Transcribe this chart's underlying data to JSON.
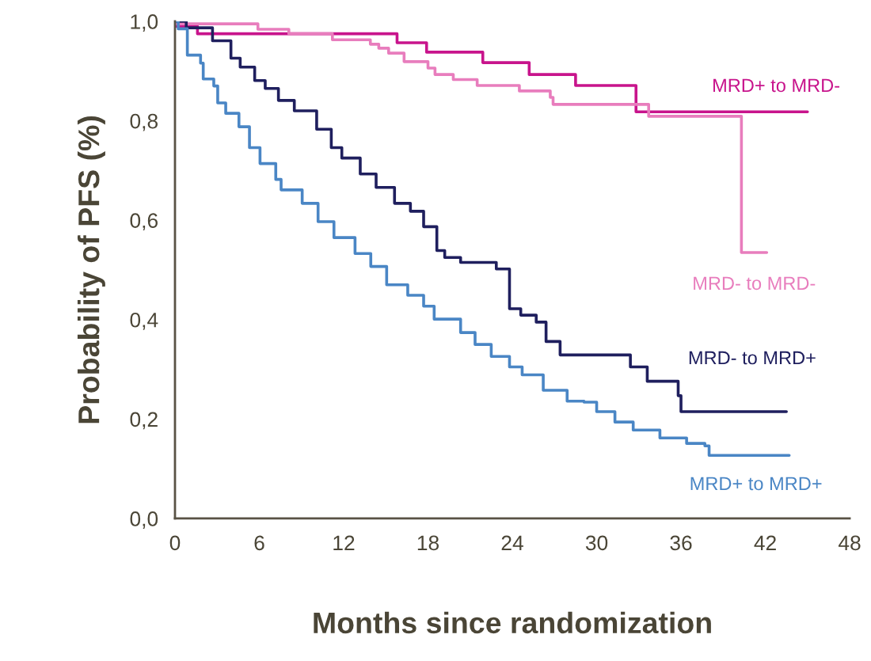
{
  "chart_data": {
    "type": "step",
    "xlabel": "Months since randomization",
    "ylabel": "Probability of PFS (%)",
    "xlim": [
      0,
      48
    ],
    "xticks": [
      0,
      6,
      12,
      18,
      24,
      30,
      36,
      42,
      48
    ],
    "ylim": [
      0,
      1
    ],
    "yticks": [
      {
        "value": 0,
        "label": "0,0"
      },
      {
        "value": 0.2,
        "label": "0,2"
      },
      {
        "value": 0.4,
        "label": "0,4"
      },
      {
        "value": 0.6,
        "label": "0,6"
      },
      {
        "value": 0.8,
        "label": "0,8"
      },
      {
        "value": 1,
        "label": "1,0"
      }
    ],
    "grid": false,
    "legend": false,
    "series": [
      {
        "name": "MRD+ to MRD-",
        "color": "#c8148c",
        "x": [
          0,
          1.6,
          15.8,
          17.9,
          21.9,
          25.2,
          28.5,
          32.8,
          45.0
        ],
        "values": [
          0.99,
          0.975,
          0.957,
          0.938,
          0.917,
          0.893,
          0.871,
          0.818,
          0.818
        ]
      },
      {
        "name": "MRD- to MRD-",
        "color": "#e87dbd",
        "x": [
          0,
          5.9,
          8.1,
          11.2,
          13.9,
          14.5,
          15.2,
          16.3,
          18.0,
          18.5,
          19.8,
          21.5,
          24.5,
          26.7,
          26.9,
          33.7,
          40.3,
          42.1
        ],
        "values": [
          0.995,
          0.984,
          0.975,
          0.963,
          0.954,
          0.946,
          0.936,
          0.919,
          0.906,
          0.893,
          0.883,
          0.871,
          0.86,
          0.847,
          0.833,
          0.809,
          0.535,
          0.535
        ]
      },
      {
        "name": "MRD- to MRD+",
        "color": "#1f1f5e",
        "x": [
          0,
          0.8,
          2.67,
          3.98,
          4.64,
          5.67,
          6.42,
          7.36,
          8.49,
          10.08,
          11.12,
          11.87,
          13.18,
          14.31,
          15.62,
          16.75,
          17.69,
          18.63,
          19.19,
          20.32,
          22.86,
          23.8,
          24.6,
          25.7,
          26.4,
          27.4,
          32.4,
          33.6,
          35.8,
          36.0,
          43.5
        ],
        "values": [
          1.0,
          0.987,
          0.961,
          0.926,
          0.908,
          0.881,
          0.865,
          0.841,
          0.82,
          0.783,
          0.746,
          0.725,
          0.693,
          0.666,
          0.634,
          0.618,
          0.587,
          0.539,
          0.525,
          0.515,
          0.502,
          0.422,
          0.409,
          0.395,
          0.356,
          0.329,
          0.305,
          0.276,
          0.247,
          0.215,
          0.215
        ]
      },
      {
        "name": "MRD+ to MRD+",
        "color": "#4a86c5",
        "x": [
          0,
          0.23,
          0.88,
          1.82,
          2.01,
          2.76,
          3.04,
          3.61,
          4.55,
          5.3,
          6.05,
          7.17,
          7.55,
          9.05,
          10.18,
          11.31,
          12.81,
          13.93,
          15.06,
          16.56,
          17.69,
          18.44,
          20.32,
          21.35,
          22.5,
          23.8,
          24.7,
          26.2,
          27.9,
          29.1,
          30.0,
          31.3,
          32.6,
          34.5,
          36.4,
          37.7,
          38.0,
          43.7
        ],
        "values": [
          1.0,
          0.985,
          0.932,
          0.916,
          0.884,
          0.87,
          0.836,
          0.815,
          0.788,
          0.746,
          0.714,
          0.682,
          0.661,
          0.634,
          0.597,
          0.565,
          0.533,
          0.507,
          0.47,
          0.449,
          0.427,
          0.401,
          0.374,
          0.35,
          0.326,
          0.305,
          0.289,
          0.258,
          0.236,
          0.234,
          0.215,
          0.194,
          0.178,
          0.162,
          0.151,
          0.146,
          0.127,
          0.127
        ]
      }
    ]
  }
}
